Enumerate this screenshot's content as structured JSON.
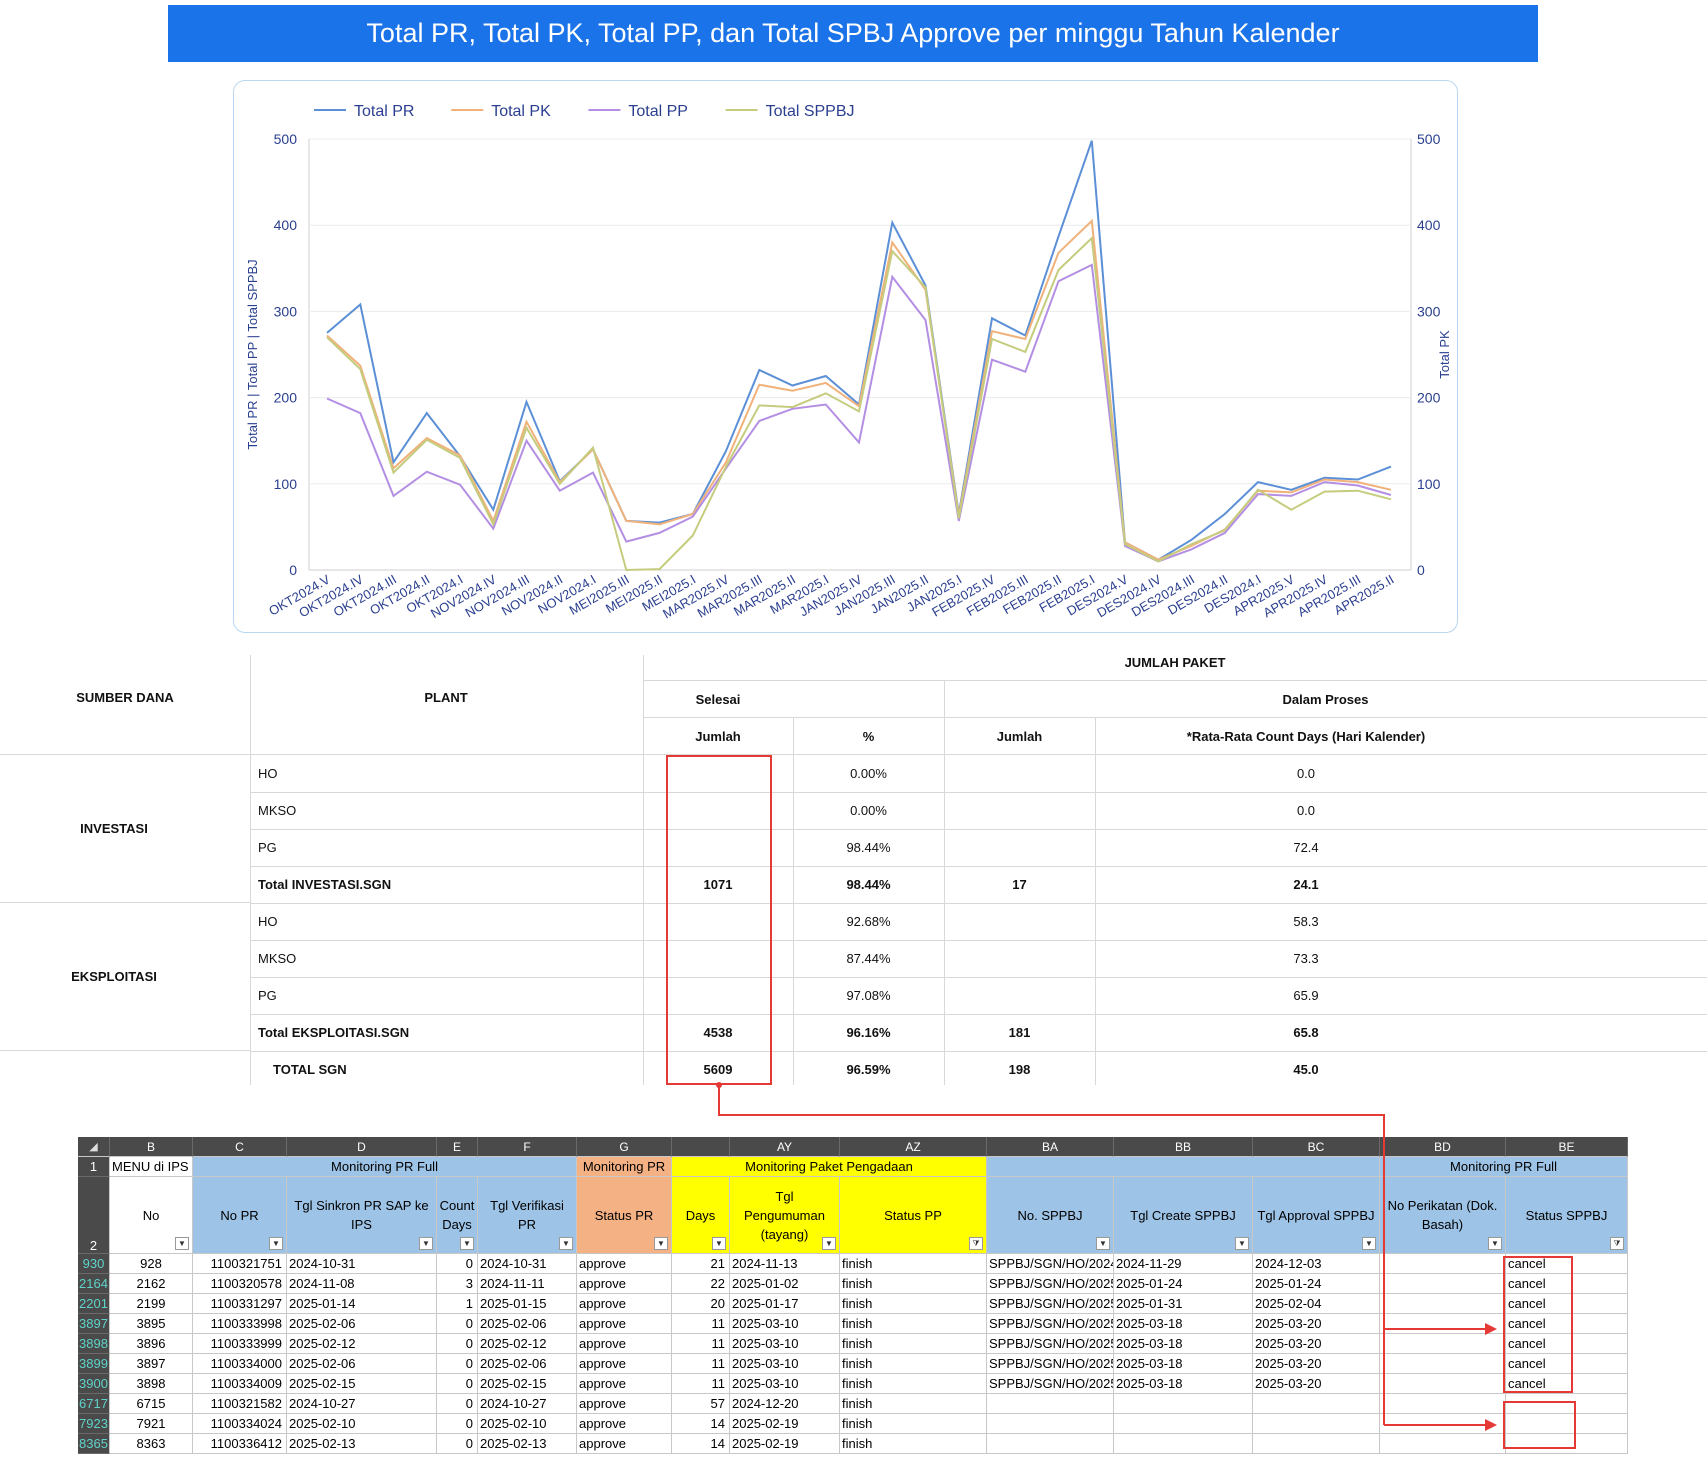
{
  "title": "Total PR, Total PK, Total PP, dan Total SPBJ Approve per minggu Tahun Kalender",
  "chart_data": {
    "type": "line",
    "title": "Total PR, Total PK, Total PP, dan Total SPBJ Approve per minggu Tahun Kalender",
    "xlabel": "",
    "ylabel": "Total PR | Total PP | Total SPPBJ",
    "y2label": "Total PK",
    "ylim": [
      0,
      500
    ],
    "y2lim": [
      0,
      500
    ],
    "yticks": [
      0,
      100,
      200,
      300,
      400,
      500
    ],
    "legend_position": "top-left",
    "grid": true,
    "categories": [
      "OKT2024.V",
      "OKT2024.IV",
      "OKT2024.III",
      "OKT2024.II",
      "OKT2024.I",
      "NOV2024.IV",
      "NOV2024.III",
      "NOV2024.II",
      "NOV2024.I",
      "MEI2025.III",
      "MEI2025.II",
      "MEI2025.I",
      "MAR2025.IV",
      "MAR2025.III",
      "MAR2025.II",
      "MAR2025.I",
      "JAN2025.IV",
      "JAN2025.III",
      "JAN2025.II",
      "JAN2025.I",
      "FEB2025.IV",
      "FEB2025.III",
      "FEB2025.II",
      "FEB2025.I",
      "DES2024.V",
      "DES2024.IV",
      "DES2024.III",
      "DES2024.II",
      "DES2024.I",
      "APR2025.V",
      "APR2025.IV",
      "APR2025.III",
      "APR2025.II"
    ],
    "series": [
      {
        "name": "Total PR",
        "color": "#5b8fd6",
        "values": [
          275,
          308,
          125,
          182,
          132,
          70,
          195,
          103,
          140,
          57,
          55,
          65,
          138,
          232,
          214,
          225,
          192,
          403,
          330,
          65,
          292,
          272,
          387,
          498,
          32,
          12,
          35,
          65,
          102,
          93,
          107,
          105,
          120
        ]
      },
      {
        "name": "Total PK",
        "color": "#f0b27a",
        "values": [
          272,
          237,
          118,
          153,
          133,
          57,
          172,
          102,
          140,
          57,
          53,
          65,
          125,
          215,
          208,
          217,
          190,
          380,
          325,
          63,
          277,
          268,
          368,
          405,
          32,
          12,
          28,
          47,
          92,
          90,
          105,
          102,
          93
        ]
      },
      {
        "name": "Total PP",
        "color": "#b48ee3",
        "values": [
          199,
          182,
          86,
          114,
          99,
          48,
          150,
          92,
          113,
          33,
          43,
          62,
          118,
          173,
          187,
          192,
          148,
          340,
          290,
          57,
          244,
          230,
          335,
          354,
          28,
          10,
          24,
          43,
          88,
          86,
          102,
          98,
          87
        ]
      },
      {
        "name": "Total SPPBJ",
        "color": "#c5cc7e",
        "values": [
          270,
          233,
          113,
          151,
          130,
          53,
          165,
          100,
          142,
          0,
          1,
          40,
          120,
          191,
          189,
          205,
          184,
          370,
          328,
          60,
          268,
          253,
          348,
          385,
          30,
          10,
          30,
          46,
          93,
          70,
          91,
          92,
          82
        ]
      }
    ]
  },
  "summary": {
    "col_sumber": "SUMBER DANA",
    "col_plant": "PLANT",
    "col_jumlah_paket": "JUMLAH PAKET",
    "col_selesai": "Selesai",
    "col_dalam_proses": "Dalam Proses",
    "col_jumlah1": "Jumlah",
    "col_pct": "%",
    "col_jumlah2": "Jumlah",
    "col_rata": "*Rata-Rata Count Days (Hari Kalender)",
    "group_investasi": "INVESTASI",
    "group_eksploitasi": "EKSPLOITASI",
    "rows": [
      {
        "plant": "HO",
        "jumlah": "",
        "pct": "0.00%",
        "proses": "",
        "rata": "0.0",
        "bold": false
      },
      {
        "plant": "MKSO",
        "jumlah": "",
        "pct": "0.00%",
        "proses": "",
        "rata": "0.0",
        "bold": false
      },
      {
        "plant": "PG",
        "jumlah": "",
        "pct": "98.44%",
        "proses": "",
        "rata": "72.4",
        "bold": false
      },
      {
        "plant": "Total INVESTASI.SGN",
        "jumlah": "1071",
        "pct": "98.44%",
        "proses": "17",
        "rata": "24.1",
        "bold": true
      },
      {
        "plant": "HO",
        "jumlah": "",
        "pct": "92.68%",
        "proses": "",
        "rata": "58.3",
        "bold": false
      },
      {
        "plant": "MKSO",
        "jumlah": "",
        "pct": "87.44%",
        "proses": "",
        "rata": "73.3",
        "bold": false
      },
      {
        "plant": "PG",
        "jumlah": "",
        "pct": "97.08%",
        "proses": "",
        "rata": "65.9",
        "bold": false
      },
      {
        "plant": "Total EKSPLOITASI.SGN",
        "jumlah": "4538",
        "pct": "96.16%",
        "proses": "181",
        "rata": "65.8",
        "bold": true
      },
      {
        "plant": "TOTAL SGN",
        "jumlah": "5609",
        "pct": "96.59%",
        "proses": "198",
        "rata": "45.0",
        "bold": true
      }
    ]
  },
  "sheet": {
    "col_letters": [
      "B",
      "C",
      "D",
      "E",
      "F",
      "G",
      "",
      "AY",
      "AZ",
      "BA",
      "BB",
      "BC",
      "BD",
      "BE"
    ],
    "row1": {
      "num": "1",
      "menu": "MENU di IPS",
      "monitoring_pr_full": "Monitoring PR Full",
      "monitoring_pr": "Monitoring PR",
      "monitoring_paket": "Monitoring Paket Pengadaan",
      "monitoring_pr_full2": "Monitoring PR Full"
    },
    "row2_num": "2",
    "headers": [
      "No",
      "No PR",
      "Tgl Sinkron PR SAP ke IPS",
      "Count Days",
      "Tgl Verifikasi PR",
      "Status PR",
      "Days",
      "Tgl Pengumuman (tayang)",
      "Status PP",
      "No. SPPBJ",
      "Tgl Create SPPBJ",
      "Tgl Approval SPPBJ",
      "No Perikatan (Dok. Basah)",
      "Status SPPBJ"
    ],
    "rows": [
      {
        "rn": "930",
        "no": "928",
        "pr": "1100321751",
        "sink": "2024-10-31",
        "cd": "0",
        "ver": "2024-10-31",
        "st": "approve",
        "days": "21",
        "peng": "2024-11-13",
        "pp": "finish",
        "sppbj": "SPPBJ/SGN/HO/2024",
        "create": "2024-11-29",
        "appr": "2024-12-03",
        "perik": "",
        "status": "cancel"
      },
      {
        "rn": "2164",
        "no": "2162",
        "pr": "1100320578",
        "sink": "2024-11-08",
        "cd": "3",
        "ver": "2024-11-11",
        "st": "approve",
        "days": "22",
        "peng": "2025-01-02",
        "pp": "finish",
        "sppbj": "SPPBJ/SGN/HO/2025",
        "create": "2025-01-24",
        "appr": "2025-01-24",
        "perik": "",
        "status": "cancel"
      },
      {
        "rn": "2201",
        "no": "2199",
        "pr": "1100331297",
        "sink": "2025-01-14",
        "cd": "1",
        "ver": "2025-01-15",
        "st": "approve",
        "days": "20",
        "peng": "2025-01-17",
        "pp": "finish",
        "sppbj": "SPPBJ/SGN/HO/2025",
        "create": "2025-01-31",
        "appr": "2025-02-04",
        "perik": "",
        "status": "cancel"
      },
      {
        "rn": "3897",
        "no": "3895",
        "pr": "1100333998",
        "sink": "2025-02-06",
        "cd": "0",
        "ver": "2025-02-06",
        "st": "approve",
        "days": "11",
        "peng": "2025-03-10",
        "pp": "finish",
        "sppbj": "SPPBJ/SGN/HO/2025",
        "create": "2025-03-18",
        "appr": "2025-03-20",
        "perik": "",
        "status": "cancel"
      },
      {
        "rn": "3898",
        "no": "3896",
        "pr": "1100333999",
        "sink": "2025-02-12",
        "cd": "0",
        "ver": "2025-02-12",
        "st": "approve",
        "days": "11",
        "peng": "2025-03-10",
        "pp": "finish",
        "sppbj": "SPPBJ/SGN/HO/2025",
        "create": "2025-03-18",
        "appr": "2025-03-20",
        "perik": "",
        "status": "cancel"
      },
      {
        "rn": "3899",
        "no": "3897",
        "pr": "1100334000",
        "sink": "2025-02-06",
        "cd": "0",
        "ver": "2025-02-06",
        "st": "approve",
        "days": "11",
        "peng": "2025-03-10",
        "pp": "finish",
        "sppbj": "SPPBJ/SGN/HO/2025",
        "create": "2025-03-18",
        "appr": "2025-03-20",
        "perik": "",
        "status": "cancel"
      },
      {
        "rn": "3900",
        "no": "3898",
        "pr": "1100334009",
        "sink": "2025-02-15",
        "cd": "0",
        "ver": "2025-02-15",
        "st": "approve",
        "days": "11",
        "peng": "2025-03-10",
        "pp": "finish",
        "sppbj": "SPPBJ/SGN/HO/2025",
        "create": "2025-03-18",
        "appr": "2025-03-20",
        "perik": "",
        "status": "cancel"
      },
      {
        "rn": "6717",
        "no": "6715",
        "pr": "1100321582",
        "sink": "2024-10-27",
        "cd": "0",
        "ver": "2024-10-27",
        "st": "approve",
        "days": "57",
        "peng": "2024-12-20",
        "pp": "finish",
        "sppbj": "",
        "create": "",
        "appr": "",
        "perik": "",
        "status": ""
      },
      {
        "rn": "7923",
        "no": "7921",
        "pr": "1100334024",
        "sink": "2025-02-10",
        "cd": "0",
        "ver": "2025-02-10",
        "st": "approve",
        "days": "14",
        "peng": "2025-02-19",
        "pp": "finish",
        "sppbj": "",
        "create": "",
        "appr": "",
        "perik": "",
        "status": ""
      },
      {
        "rn": "8365",
        "no": "8363",
        "pr": "1100336412",
        "sink": "2025-02-13",
        "cd": "0",
        "ver": "2025-02-13",
        "st": "approve",
        "days": "14",
        "peng": "2025-02-19",
        "pp": "finish",
        "sppbj": "",
        "create": "",
        "appr": "",
        "perik": "",
        "status": ""
      }
    ]
  }
}
